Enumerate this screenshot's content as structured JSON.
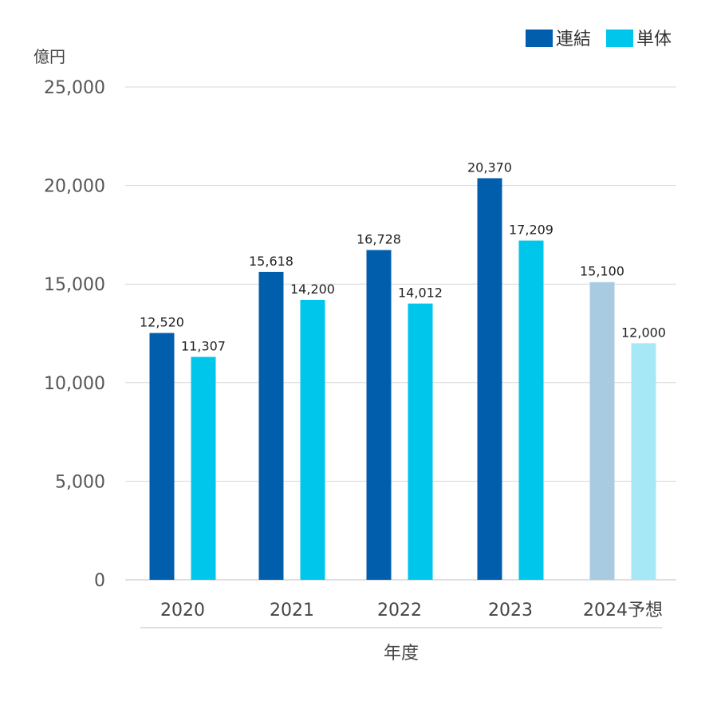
{
  "chart_data": {
    "type": "bar",
    "ylabel": "億円",
    "xlabel": "年度",
    "ylim": [
      0,
      25000
    ],
    "yticks": [
      "0",
      "5,000",
      "10,000",
      "15,000",
      "20,000",
      "25,000"
    ],
    "ytick_values": [
      0,
      5000,
      10000,
      15000,
      20000,
      25000
    ],
    "grid": true,
    "legend_position": "top-right",
    "categories": [
      "2020",
      "2021",
      "2022",
      "2023",
      "2024予想"
    ],
    "series": [
      {
        "name": "連結",
        "color": "#005EAD",
        "values": [
          12520,
          15618,
          16728,
          20370,
          15100
        ],
        "labels": [
          "12,520",
          "15,618",
          "16,728",
          "20,370",
          "15,100"
        ],
        "forecast_color": "#A9CBE2"
      },
      {
        "name": "単体",
        "color": "#00C6EB",
        "values": [
          11307,
          14200,
          14012,
          17209,
          12000
        ],
        "labels": [
          "11,307",
          "14,200",
          "14,012",
          "17,209",
          "12,000"
        ],
        "forecast_color": "#A7E8F7"
      }
    ],
    "forecast_category_index": 4
  }
}
